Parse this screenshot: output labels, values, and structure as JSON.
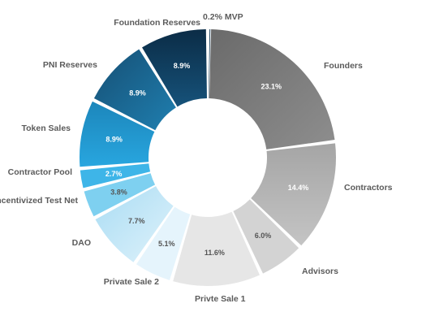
{
  "chart_data": {
    "type": "pie",
    "style": "donut",
    "title": "",
    "slices": [
      {
        "label": "0.2% MVP",
        "value": 0.2,
        "value_label": "",
        "color": "#0d3552",
        "text_color": "#ffffff"
      },
      {
        "label": "Founders",
        "value": 23.1,
        "value_label": "23.1%",
        "color": "#7c7c7c",
        "text_color": "#ffffff"
      },
      {
        "label": "Contractors",
        "value": 14.4,
        "value_label": "14.4%",
        "color": "#b4b4b4",
        "text_color": "#ffffff"
      },
      {
        "label": "Advisors",
        "value": 6.0,
        "value_label": "6.0%",
        "color": "#d3d3d3",
        "text_color": "#555555"
      },
      {
        "label": "Privte Sale 1",
        "value": 11.6,
        "value_label": "11.6%",
        "color": "#e6e6e6",
        "text_color": "#555555"
      },
      {
        "label": "Private Sale 2",
        "value": 5.1,
        "value_label": "5.1%",
        "color": "#e5f4fc",
        "text_color": "#555555"
      },
      {
        "label": "DAO",
        "value": 7.7,
        "value_label": "7.7%",
        "color": "#c7e9f9",
        "text_color": "#555555"
      },
      {
        "label": "Incentivized Test Net",
        "value": 3.8,
        "value_label": "3.8%",
        "color": "#7ed0f0",
        "text_color": "#555555"
      },
      {
        "label": "Contractor  Pool",
        "value": 2.7,
        "value_label": "2.7%",
        "color": "#3eb5e8",
        "text_color": "#ffffff"
      },
      {
        "label": "Token Sales",
        "value": 8.9,
        "value_label": "8.9%",
        "color": "#2196cf",
        "text_color": "#ffffff"
      },
      {
        "label": "PNI Reserves",
        "value": 8.9,
        "value_label": "8.9%",
        "color": "#1a6b96",
        "text_color": "#ffffff"
      },
      {
        "label": "Foundation Reserves",
        "value": 8.9,
        "value_label": "8.9%",
        "color": "#113f5e",
        "text_color": "#ffffff"
      }
    ]
  }
}
